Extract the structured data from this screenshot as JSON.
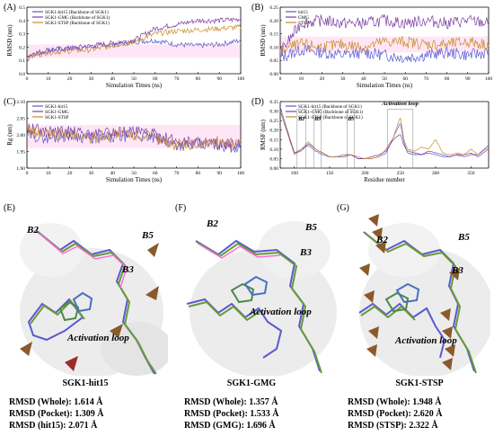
{
  "panels": {
    "A": {
      "letter": "(A)",
      "ylabel": "RMSD (nm)",
      "xlabel": "Simulation Times (ns)",
      "yticks": [
        "0.0",
        "0.1",
        "0.2",
        "0.3",
        "0.4",
        "0.5"
      ],
      "xticks": [
        "0",
        "10",
        "20",
        "30",
        "40",
        "50",
        "60",
        "70",
        "80",
        "90",
        "100"
      ],
      "legend": [
        "SGK1-hit15 (Backbone of SGK1)",
        "SGK1-GMG (Backbone of SGK1)",
        "SGK1-STSP (Backbone of SGK1)"
      ]
    },
    "B": {
      "letter": "(B)",
      "ylabel": "RMSD (nm)",
      "xlabel": "Simulation Times (ns)",
      "yticks": [
        "0.00",
        "0.05",
        "0.10",
        "0.15",
        "0.20",
        "0.25"
      ],
      "xticks": [
        "0",
        "10",
        "20",
        "30",
        "40",
        "50",
        "60",
        "70",
        "80",
        "90",
        "100"
      ],
      "legend": [
        "hit15",
        "GMG",
        "STSP"
      ]
    },
    "C": {
      "letter": "(C)",
      "ylabel": "Rg (nm)",
      "xlabel": "Simulation Times (ns)",
      "yticks": [
        "1.90",
        "1.95",
        "2.00",
        "2.05",
        "2.10"
      ],
      "xticks": [
        "0",
        "10",
        "20",
        "30",
        "40",
        "50",
        "60",
        "70",
        "80",
        "90",
        "100"
      ],
      "legend": [
        "SGK1-hit15",
        "SGK1-GMG",
        "SGK1-STSP"
      ]
    },
    "D": {
      "letter": "(D)",
      "ylabel": "RMSF (nm)",
      "xlabel": "Residue number",
      "yticks": [
        "0.00",
        "0.05",
        "0.10",
        "0.15",
        "0.20",
        "0.25",
        "0.30",
        "0.35"
      ],
      "xticks": [
        "100",
        "150",
        "200",
        "250",
        "300",
        "350"
      ],
      "legend": [
        "SGK1-hit15 (Backbone of SGK1)",
        "SGK1-GMG (Backbone of SGK1)",
        "SGK1-STSP (Backbone of SGK1)"
      ],
      "annotations": [
        "B2",
        "B3",
        "B5",
        "Activation loop"
      ]
    }
  },
  "structures": {
    "E": {
      "letter": "(E)",
      "labels": [
        "B2",
        "B5",
        "B3",
        "Activation loop"
      ],
      "caption": "SGK1-hit15",
      "rmsd": [
        "RMSD (Whole): 1.614 Å",
        "RMSD (Pocket): 1.309 Å",
        "RMSD (hit15): 2.071 Å"
      ]
    },
    "F": {
      "letter": "(F)",
      "labels": [
        "B2",
        "B5",
        "B3",
        "Activation loop"
      ],
      "caption": "SGK1-GMG",
      "rmsd": [
        "RMSD (Whole): 1.357 Å",
        "RMSD (Pocket): 1.533 Å",
        "RMSD (GMG): 1.696 Å"
      ]
    },
    "G": {
      "letter": "(G)",
      "labels": [
        "B2",
        "B5",
        "B3",
        "Activation loop"
      ],
      "caption": "SGK1-STSP",
      "rmsd": [
        "RMSD (Whole): 1.948 Å",
        "RMSD (Pocket): 2.620 Å",
        "RMSD (STSP): 2.322 Å"
      ]
    }
  },
  "colors": {
    "hit15": "#5a5ad0",
    "gmg": "#7a3fa0",
    "stsp": "#c98b2b",
    "hit15_light": "#2aa7e0",
    "highlight": "#ff6fd8"
  },
  "chart_data": [
    {
      "type": "line",
      "xlabel": "Simulation Times (ns)",
      "ylabel": "RMSD (nm)",
      "xlim": [
        0,
        100
      ],
      "ylim": [
        0.0,
        0.5
      ],
      "x": [
        0,
        10,
        20,
        30,
        40,
        50,
        60,
        70,
        80,
        90,
        100
      ],
      "series": [
        {
          "name": "SGK1-hit15 (Backbone of SGK1)",
          "values": [
            0.13,
            0.17,
            0.19,
            0.2,
            0.22,
            0.24,
            0.25,
            0.22,
            0.21,
            0.22,
            0.25
          ]
        },
        {
          "name": "SGK1-GMG (Backbone of SGK1)",
          "values": [
            0.14,
            0.18,
            0.19,
            0.21,
            0.23,
            0.25,
            0.34,
            0.37,
            0.4,
            0.4,
            0.41
          ]
        },
        {
          "name": "SGK1-STSP (Backbone of SGK1)",
          "values": [
            0.12,
            0.16,
            0.17,
            0.18,
            0.21,
            0.24,
            0.3,
            0.32,
            0.33,
            0.34,
            0.35
          ]
        }
      ]
    },
    {
      "type": "line",
      "xlabel": "Simulation Times (ns)",
      "ylabel": "RMSD (nm)",
      "xlim": [
        0,
        100
      ],
      "ylim": [
        0.0,
        0.25
      ],
      "x": [
        0,
        10,
        20,
        30,
        40,
        50,
        60,
        70,
        80,
        90,
        100
      ],
      "series": [
        {
          "name": "hit15",
          "values": [
            0.06,
            0.09,
            0.08,
            0.07,
            0.08,
            0.07,
            0.06,
            0.07,
            0.08,
            0.07,
            0.08
          ]
        },
        {
          "name": "GMG",
          "values": [
            0.08,
            0.19,
            0.2,
            0.19,
            0.19,
            0.2,
            0.19,
            0.2,
            0.19,
            0.2,
            0.19
          ]
        },
        {
          "name": "STSP",
          "values": [
            0.09,
            0.11,
            0.1,
            0.11,
            0.1,
            0.12,
            0.12,
            0.11,
            0.11,
            0.12,
            0.11
          ]
        }
      ]
    },
    {
      "type": "line",
      "xlabel": "Simulation Times (ns)",
      "ylabel": "Rg (nm)",
      "xlim": [
        0,
        100
      ],
      "ylim": [
        1.9,
        2.1
      ],
      "x": [
        0,
        10,
        20,
        30,
        40,
        50,
        60,
        70,
        80,
        90,
        100
      ],
      "series": [
        {
          "name": "SGK1-hit15",
          "values": [
            2.0,
            1.99,
            2.0,
            1.99,
            1.99,
            2.0,
            1.99,
            1.97,
            1.97,
            1.97,
            1.96
          ]
        },
        {
          "name": "SGK1-GMG",
          "values": [
            2.02,
            2.01,
            2.01,
            2.0,
            2.01,
            2.01,
            2.0,
            1.98,
            1.98,
            1.97,
            1.97
          ]
        },
        {
          "name": "SGK1-STSP",
          "values": [
            2.01,
            2.0,
            2.0,
            1.99,
            2.0,
            2.0,
            1.99,
            1.97,
            1.97,
            1.98,
            1.97
          ]
        }
      ]
    },
    {
      "type": "line",
      "xlabel": "Residue number",
      "ylabel": "RMSF (nm)",
      "xlim": [
        80,
        375
      ],
      "ylim": [
        0.0,
        0.35
      ],
      "x": [
        80,
        100,
        110,
        120,
        130,
        140,
        150,
        160,
        170,
        180,
        190,
        200,
        210,
        220,
        230,
        240,
        250,
        255,
        260,
        270,
        280,
        290,
        300,
        310,
        320,
        330,
        340,
        350,
        360,
        375
      ],
      "series": [
        {
          "name": "SGK1-hit15 (Backbone of SGK1)",
          "values": [
            0.32,
            0.08,
            0.1,
            0.12,
            0.09,
            0.07,
            0.06,
            0.06,
            0.07,
            0.07,
            0.05,
            0.05,
            0.05,
            0.06,
            0.08,
            0.16,
            0.24,
            0.14,
            0.08,
            0.07,
            0.07,
            0.08,
            0.07,
            0.06,
            0.06,
            0.07,
            0.06,
            0.07,
            0.07,
            0.12
          ]
        },
        {
          "name": "SGK1-GMG (Backbone of SGK1)",
          "values": [
            0.3,
            0.08,
            0.09,
            0.13,
            0.1,
            0.08,
            0.06,
            0.06,
            0.06,
            0.07,
            0.05,
            0.05,
            0.06,
            0.07,
            0.09,
            0.15,
            0.18,
            0.12,
            0.09,
            0.08,
            0.07,
            0.09,
            0.08,
            0.07,
            0.06,
            0.07,
            0.07,
            0.08,
            0.06,
            0.1
          ]
        },
        {
          "name": "SGK1-STSP (Backbone of SGK1)",
          "values": [
            0.3,
            0.07,
            0.1,
            0.14,
            0.1,
            0.08,
            0.06,
            0.06,
            0.07,
            0.07,
            0.06,
            0.05,
            0.05,
            0.06,
            0.1,
            0.16,
            0.27,
            0.15,
            0.1,
            0.09,
            0.11,
            0.1,
            0.15,
            0.08,
            0.07,
            0.08,
            0.07,
            0.1,
            0.07,
            0.11
          ]
        }
      ]
    }
  ]
}
